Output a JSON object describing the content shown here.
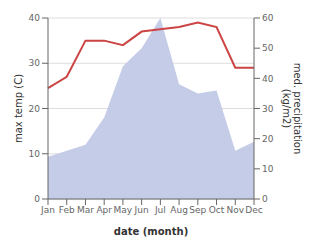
{
  "chart_data": {
    "type": "line",
    "categories": [
      "Jan",
      "Feb",
      "Mar",
      "Apr",
      "May",
      "Jun",
      "Jul",
      "Aug",
      "Sep",
      "Oct",
      "Nov",
      "Dec"
    ],
    "series": [
      {
        "type": "area",
        "axis": "y2",
        "color": "#c5cce8",
        "values": [
          14,
          16,
          18,
          27,
          44,
          50,
          60,
          38,
          35,
          36,
          16,
          19
        ]
      },
      {
        "type": "line",
        "color": "#cc4444",
        "values": [
          24.5,
          27.0,
          35.0,
          35.0,
          34.0,
          37.0,
          37.5,
          38.0,
          39.0,
          38.0,
          29.0,
          29.0
        ]
      }
    ],
    "xlabel": "date (month)",
    "ylabel": "max temp (C)",
    "y2label": "med. precipitation\n(kg/m2)",
    "ylim": [
      0,
      40
    ],
    "yticks": [
      0,
      10,
      20,
      30,
      40
    ],
    "y2lim": [
      0,
      60
    ],
    "y2ticks": [
      0,
      10,
      20,
      30,
      40,
      50,
      60
    ],
    "grid": true
  }
}
